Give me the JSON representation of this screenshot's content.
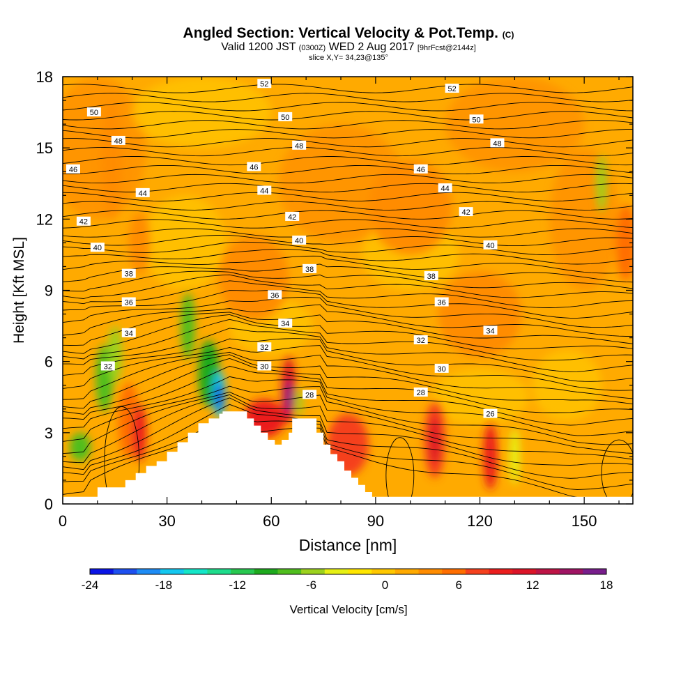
{
  "title": {
    "main": "Angled Section: Vertical Velocity & Pot.Temp.",
    "main_tag": "(C)",
    "line2_a": "Valid 1200 JST",
    "line2_b": "(0300Z)",
    "line2_c": "WED 2 Aug 2017",
    "line2_d": "[9hrFcst@2144z]",
    "line3": "slice X,Y= 34,23@135°"
  },
  "chart_data": {
    "type": "heatmap",
    "xlabel": "Distance [nm]",
    "ylabel": "Height [Kft MSL]",
    "xlim": [
      0,
      164
    ],
    "ylim": [
      0,
      18
    ],
    "x_ticks": [
      0,
      30,
      60,
      90,
      120,
      150
    ],
    "y_ticks": [
      0,
      3,
      6,
      9,
      12,
      15,
      18
    ],
    "colorbar": {
      "label": "Vertical Velocity [cm/s]",
      "ticks": [
        -24,
        -18,
        -12,
        -6,
        0,
        6,
        12,
        18
      ],
      "colors": [
        "#0a14e6",
        "#1e50f0",
        "#1e8cf5",
        "#14c8f0",
        "#14e6c8",
        "#1edc8c",
        "#28c850",
        "#1eaa1e",
        "#50be1e",
        "#9cd21e",
        "#e6f014",
        "#ffe600",
        "#ffc800",
        "#ffaa00",
        "#ff8c00",
        "#ff6e00",
        "#f5411e",
        "#eb1e1e",
        "#dc1428",
        "#be1446",
        "#a01464",
        "#781e8c"
      ]
    },
    "contour_labels": [
      {
        "x": 58,
        "y": 17.7,
        "v": "52"
      },
      {
        "x": 112,
        "y": 17.5,
        "v": "52"
      },
      {
        "x": 9,
        "y": 16.5,
        "v": "50"
      },
      {
        "x": 64,
        "y": 16.3,
        "v": "50"
      },
      {
        "x": 119,
        "y": 16.2,
        "v": "50"
      },
      {
        "x": 16,
        "y": 15.3,
        "v": "48"
      },
      {
        "x": 68,
        "y": 15.1,
        "v": "48"
      },
      {
        "x": 125,
        "y": 15.2,
        "v": "48"
      },
      {
        "x": 3,
        "y": 14.1,
        "v": "46"
      },
      {
        "x": 55,
        "y": 14.2,
        "v": "46"
      },
      {
        "x": 103,
        "y": 14.1,
        "v": "46"
      },
      {
        "x": 23,
        "y": 13.1,
        "v": "44"
      },
      {
        "x": 58,
        "y": 13.2,
        "v": "44"
      },
      {
        "x": 110,
        "y": 13.3,
        "v": "44"
      },
      {
        "x": 6,
        "y": 11.9,
        "v": "42"
      },
      {
        "x": 66,
        "y": 12.1,
        "v": "42"
      },
      {
        "x": 116,
        "y": 12.3,
        "v": "42"
      },
      {
        "x": 10,
        "y": 10.8,
        "v": "40"
      },
      {
        "x": 68,
        "y": 11.1,
        "v": "40"
      },
      {
        "x": 123,
        "y": 10.9,
        "v": "40"
      },
      {
        "x": 19,
        "y": 9.7,
        "v": "38"
      },
      {
        "x": 71,
        "y": 9.9,
        "v": "38"
      },
      {
        "x": 106,
        "y": 9.6,
        "v": "38"
      },
      {
        "x": 19,
        "y": 8.5,
        "v": "36"
      },
      {
        "x": 61,
        "y": 8.8,
        "v": "36"
      },
      {
        "x": 109,
        "y": 8.5,
        "v": "36"
      },
      {
        "x": 19,
        "y": 7.2,
        "v": "34"
      },
      {
        "x": 64,
        "y": 7.6,
        "v": "34"
      },
      {
        "x": 123,
        "y": 7.3,
        "v": "34"
      },
      {
        "x": 13,
        "y": 5.8,
        "v": "32"
      },
      {
        "x": 58,
        "y": 6.6,
        "v": "32"
      },
      {
        "x": 103,
        "y": 6.9,
        "v": "32"
      },
      {
        "x": 58,
        "y": 5.8,
        "v": "30"
      },
      {
        "x": 109,
        "y": 5.7,
        "v": "30"
      },
      {
        "x": 71,
        "y": 4.6,
        "v": "28"
      },
      {
        "x": 103,
        "y": 4.7,
        "v": "28"
      },
      {
        "x": 123,
        "y": 3.8,
        "v": "26"
      }
    ],
    "terrain_profile": [
      [
        0,
        0.3
      ],
      [
        8,
        0.3
      ],
      [
        10,
        0.7
      ],
      [
        16,
        0.7
      ],
      [
        18,
        1.0
      ],
      [
        21,
        1.3
      ],
      [
        24,
        1.6
      ],
      [
        27,
        1.8
      ],
      [
        30,
        2.2
      ],
      [
        33,
        2.6
      ],
      [
        36,
        3.0
      ],
      [
        39,
        3.4
      ],
      [
        42,
        3.6
      ],
      [
        45,
        3.8
      ],
      [
        46,
        3.9
      ],
      [
        51,
        3.9
      ],
      [
        53,
        3.6
      ],
      [
        55,
        3.3
      ],
      [
        57,
        3.0
      ],
      [
        59,
        2.7
      ],
      [
        61,
        2.5
      ],
      [
        63,
        2.7
      ],
      [
        65,
        3.0
      ],
      [
        66,
        3.6
      ],
      [
        71,
        3.6
      ],
      [
        73,
        3.0
      ],
      [
        75,
        2.5
      ],
      [
        77,
        2.1
      ],
      [
        79,
        1.8
      ],
      [
        81,
        1.4
      ],
      [
        83,
        1.1
      ],
      [
        85,
        0.8
      ],
      [
        87,
        0.5
      ],
      [
        89,
        0.3
      ],
      [
        164,
        0.3
      ]
    ],
    "velocity_cells": [
      {
        "x": 5,
        "y": 2.4,
        "rx": 3,
        "ry": 0.6,
        "v": -8
      },
      {
        "x": 12,
        "y": 5.3,
        "rx": 2.5,
        "ry": 1.4,
        "v": -8
      },
      {
        "x": 15,
        "y": 6.3,
        "rx": 2,
        "ry": 1.2,
        "v": -6
      },
      {
        "x": 19,
        "y": 3.5,
        "rx": 3,
        "ry": 1.6,
        "v": 6
      },
      {
        "x": 22,
        "y": 3.0,
        "rx": 2,
        "ry": 1.2,
        "v": 10
      },
      {
        "x": 22,
        "y": 11.0,
        "rx": 3,
        "ry": 1.3,
        "v": 4
      },
      {
        "x": 14,
        "y": 14.5,
        "rx": 3,
        "ry": 2.5,
        "v": 4
      },
      {
        "x": 36,
        "y": 7.5,
        "rx": 2,
        "ry": 1.4,
        "v": -8
      },
      {
        "x": 42,
        "y": 5.5,
        "rx": 3,
        "ry": 1.4,
        "v": -10
      },
      {
        "x": 45,
        "y": 4.6,
        "rx": 1.8,
        "ry": 1.0,
        "v": -18
      },
      {
        "x": 45,
        "y": 4.5,
        "rx": 1,
        "ry": 0.6,
        "v": -24
      },
      {
        "x": 58,
        "y": 3.6,
        "rx": 6,
        "ry": 0.8,
        "v": 10
      },
      {
        "x": 65,
        "y": 4.8,
        "rx": 2,
        "ry": 1.4,
        "v": 12
      },
      {
        "x": 65,
        "y": 4.5,
        "rx": 1,
        "ry": 0.7,
        "v": 18
      },
      {
        "x": 68,
        "y": 4.3,
        "rx": 1,
        "ry": 0.6,
        "v": -6
      },
      {
        "x": 82,
        "y": 2.5,
        "rx": 6,
        "ry": 1.3,
        "v": 7
      },
      {
        "x": 107,
        "y": 2.7,
        "rx": 3,
        "ry": 1.6,
        "v": 8
      },
      {
        "x": 107,
        "y": 2.7,
        "rx": 1.5,
        "ry": 1.0,
        "v": 11
      },
      {
        "x": 123,
        "y": 2.0,
        "rx": 2,
        "ry": 1.4,
        "v": 9
      },
      {
        "x": 130,
        "y": 2.0,
        "rx": 1.5,
        "ry": 1.2,
        "v": -4
      },
      {
        "x": 155,
        "y": 13.5,
        "rx": 1.5,
        "ry": 1.2,
        "v": -5
      },
      {
        "x": 162,
        "y": 11.0,
        "rx": 3,
        "ry": 1.6,
        "v": 5
      },
      {
        "x": 55,
        "y": 9.5,
        "rx": 10,
        "ry": 1.8,
        "v": 3
      },
      {
        "x": 120,
        "y": 8.0,
        "rx": 12,
        "ry": 1.8,
        "v": 3
      },
      {
        "x": 100,
        "y": 12.5,
        "rx": 12,
        "ry": 2.0,
        "v": 3
      }
    ]
  }
}
